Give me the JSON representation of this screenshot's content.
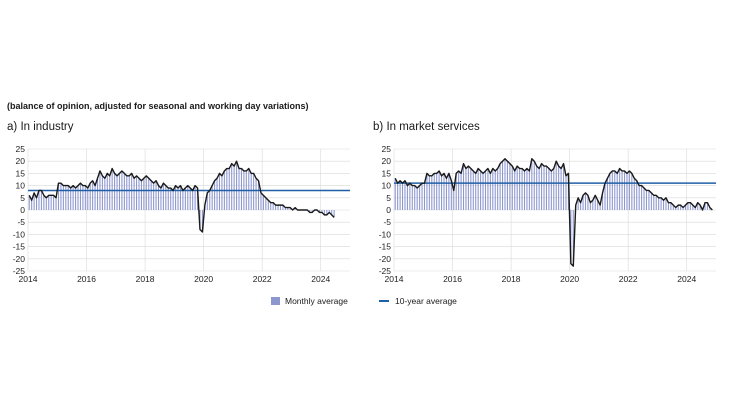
{
  "subtitle": "(balance of opinion, adjusted for seasonal and working day variations)",
  "panels": [
    {
      "label": "a)",
      "title": "In industry"
    },
    {
      "label": "b)",
      "title": "In market services"
    }
  ],
  "legend": {
    "monthly": "Monthly average",
    "ten_year": "10-year average"
  },
  "colors": {
    "bars": "#8c96cf",
    "line": "#1a1a1a",
    "ten_year_avg": "#1f5fa8"
  },
  "chart_data": [
    {
      "type": "bar",
      "title": "a) In industry",
      "x_start": 2014.0,
      "x_step_months": 1,
      "ylim": [
        -25,
        25
      ],
      "yticks": [
        25,
        20,
        15,
        10,
        5,
        0,
        -5,
        -10,
        -15,
        -20,
        -25
      ],
      "xlim": [
        2014,
        2025
      ],
      "xticks": [
        "2014",
        "2016",
        "2018",
        "2020",
        "2022",
        "2024"
      ],
      "grid": true,
      "ten_year_average": 8,
      "values": [
        6,
        4,
        7,
        5,
        8,
        8,
        6,
        5,
        6,
        6,
        6,
        5,
        11,
        11,
        10,
        10,
        10,
        9,
        10,
        9,
        10,
        11,
        10,
        10,
        9,
        11,
        12,
        10,
        13,
        16,
        14,
        13,
        15,
        14,
        17,
        15,
        14,
        15,
        16,
        15,
        14,
        14,
        15,
        13,
        14,
        13,
        12,
        13,
        14,
        13,
        12,
        11,
        12,
        10,
        9,
        11,
        10,
        9,
        9,
        8,
        10,
        9,
        10,
        8,
        9,
        10,
        9,
        8,
        10,
        9,
        -8,
        -9,
        2,
        7,
        8,
        10,
        12,
        13,
        15,
        14,
        16,
        17,
        17,
        19,
        18,
        20,
        17,
        17,
        16,
        16,
        17,
        15,
        15,
        13,
        12,
        7,
        6,
        5,
        4,
        3,
        3,
        2,
        2,
        2,
        2,
        1,
        1,
        1,
        0,
        1,
        0,
        0,
        0,
        0,
        0,
        -1,
        -1,
        0,
        0,
        -1,
        -1,
        -2,
        -2,
        -1,
        -2,
        -3
      ]
    },
    {
      "type": "bar",
      "title": "b) In market services",
      "x_start": 2014.0,
      "x_step_months": 1,
      "ylim": [
        -25,
        25
      ],
      "yticks": [
        25,
        20,
        15,
        10,
        5,
        0,
        -5,
        -10,
        -15,
        -20,
        -25
      ],
      "xlim": [
        2014,
        2025
      ],
      "xticks": [
        "2014",
        "2016",
        "2018",
        "2020",
        "2022",
        "2024"
      ],
      "grid": true,
      "ten_year_average": 11,
      "values": [
        13,
        11,
        12,
        11,
        12,
        10,
        11,
        10,
        10,
        9,
        10,
        11,
        11,
        15,
        14,
        14,
        15,
        15,
        16,
        14,
        15,
        13,
        15,
        12,
        8,
        15,
        16,
        15,
        19,
        17,
        18,
        17,
        16,
        15,
        17,
        16,
        15,
        16,
        17,
        15,
        17,
        16,
        17,
        19,
        20,
        21,
        20,
        19,
        18,
        16,
        18,
        17,
        17,
        16,
        17,
        16,
        21,
        20,
        18,
        17,
        19,
        18,
        18,
        17,
        16,
        17,
        20,
        18,
        17,
        19,
        14,
        15,
        -22,
        -23,
        2,
        5,
        3,
        6,
        7,
        6,
        3,
        4,
        6,
        4,
        2,
        7,
        11,
        13,
        15,
        16,
        16,
        15,
        17,
        16,
        16,
        15,
        16,
        15,
        13,
        12,
        10,
        10,
        9,
        8,
        8,
        7,
        6,
        6,
        5,
        5,
        4,
        5,
        3,
        3,
        2,
        1,
        2,
        2,
        1,
        2,
        3,
        3,
        2,
        1,
        3,
        2,
        0,
        3,
        3,
        1,
        0
      ]
    }
  ]
}
